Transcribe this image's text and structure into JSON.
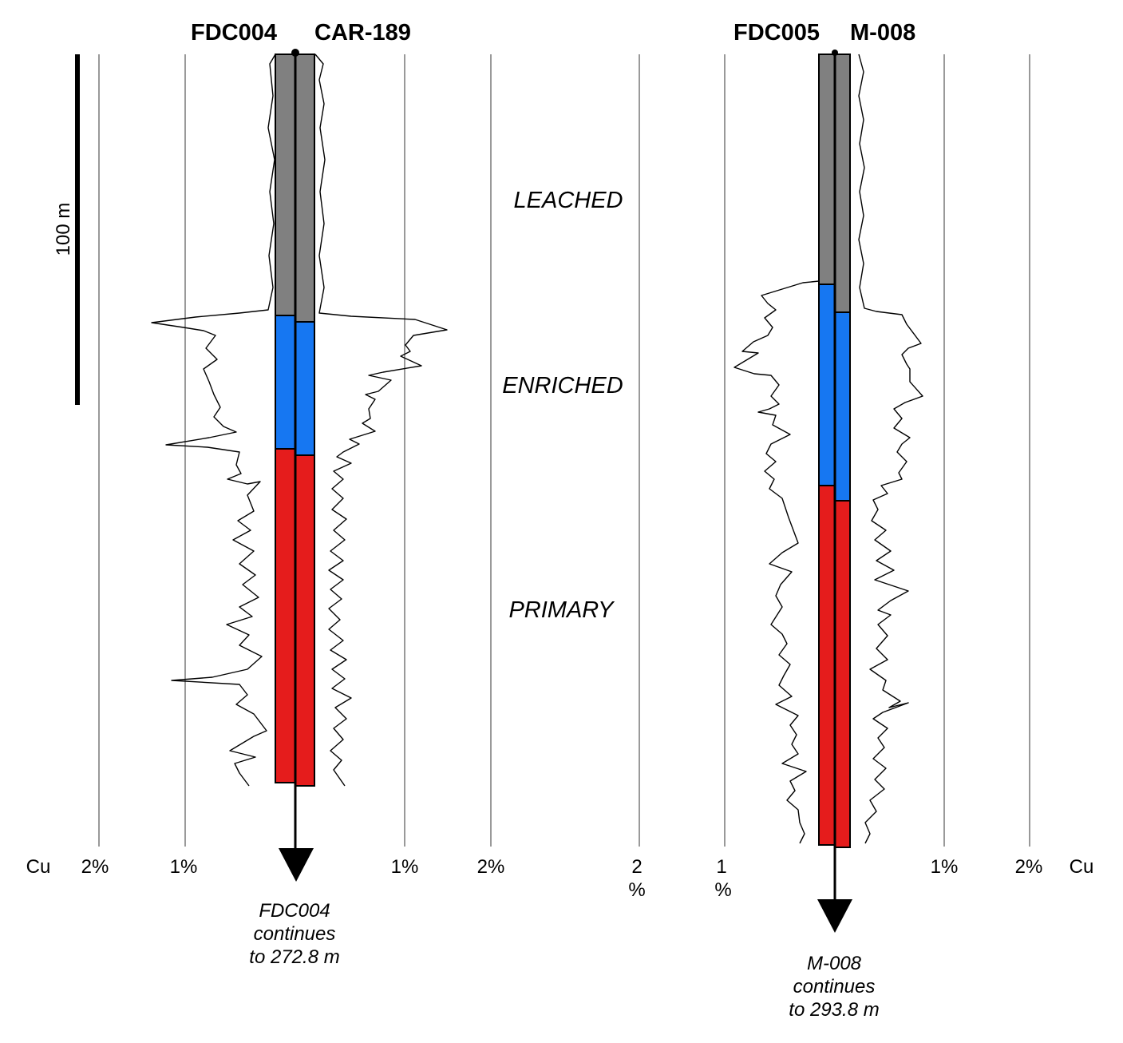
{
  "colors": {
    "leached": "#808080",
    "enriched": "#1677f2",
    "primary": "#e51c1c",
    "line": "#000000"
  },
  "scale_bar": {
    "label": "100 m"
  },
  "zones": {
    "leached": "LEACHED",
    "enriched": "ENRICHED",
    "primary": "PRIMARY"
  },
  "holes": {
    "fdc004": "FDC004",
    "car189": "CAR-189",
    "fdc005": "FDC005",
    "m008": "M-008"
  },
  "axis": {
    "cu_left": "Cu",
    "cu_right": "Cu",
    "left_pair": {
      "left_2pct": "2%",
      "left_1pct": "1%",
      "right_1pct": "1%",
      "right_2pct": "2%"
    },
    "right_pair": {
      "left_2_num": "2",
      "left_2_unit": "%",
      "left_1_num": "1",
      "left_1_unit": "%",
      "right_1pct": "1%",
      "right_2pct": "2%"
    }
  },
  "notes": {
    "fdc004": {
      "line1": "FDC004",
      "line2": "continues",
      "line3": "to 272.8 m"
    },
    "m008": {
      "line1": "M-008",
      "line2": "continues",
      "line3": "to 293.8 m"
    }
  }
}
